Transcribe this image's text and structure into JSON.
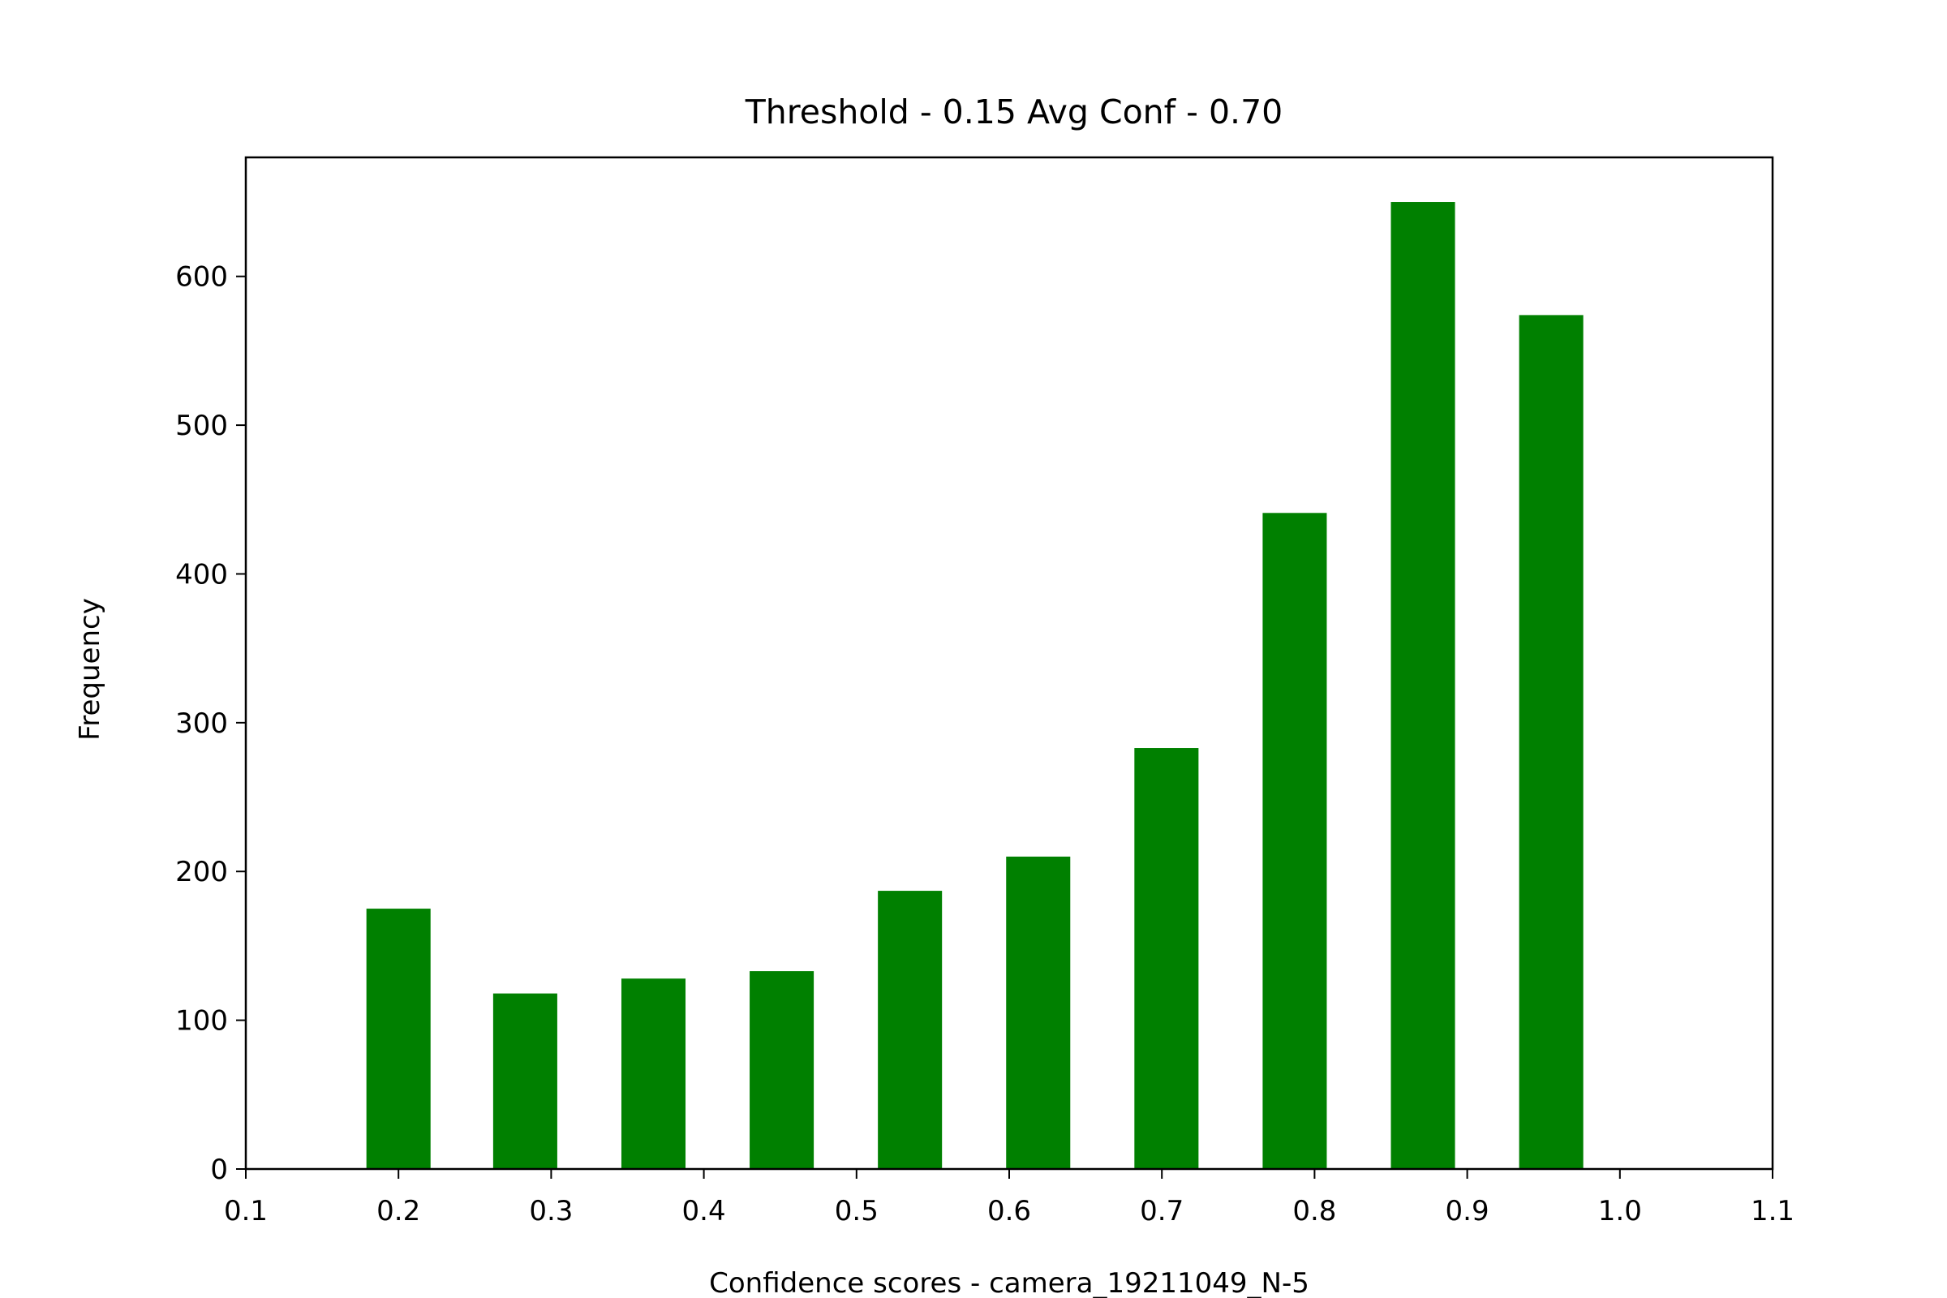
{
  "chart_data": {
    "type": "bar",
    "title": "Threshold - 0.15 Avg Conf - 0.70",
    "xlabel": "Confidence scores - camera_19211049_N-5",
    "ylabel": "Frequency",
    "x": [
      0.2,
      0.283,
      0.367,
      0.451,
      0.535,
      0.619,
      0.703,
      0.787,
      0.871,
      0.955
    ],
    "values": [
      175,
      118,
      128,
      133,
      187,
      210,
      283,
      441,
      650,
      574
    ],
    "bar_width": 0.042,
    "xlim": [
      0.1,
      1.1
    ],
    "ylim": [
      0,
      680
    ],
    "xticks": [
      "0.1",
      "0.2",
      "0.3",
      "0.4",
      "0.5",
      "0.6",
      "0.7",
      "0.8",
      "0.9",
      "1.0",
      "1.1"
    ],
    "yticks": [
      "0",
      "100",
      "200",
      "300",
      "400",
      "500",
      "600"
    ],
    "grid": false,
    "colors": {
      "bar": "#008000"
    }
  }
}
